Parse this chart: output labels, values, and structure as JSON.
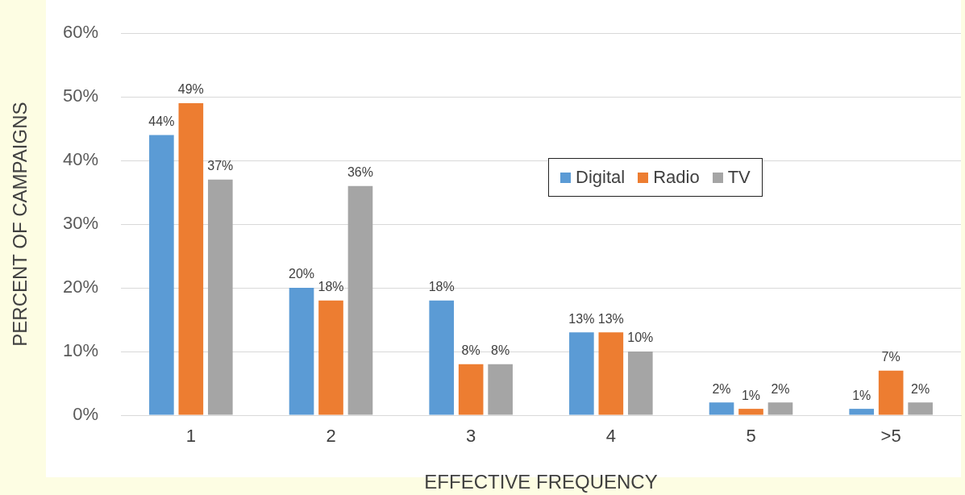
{
  "chart_data": {
    "type": "bar",
    "xlabel": "EFFECTIVE FREQUENCY",
    "ylabel": "PERCENT OF CAMPAIGNS",
    "categories": [
      "1",
      "2",
      "3",
      "4",
      "5",
      ">5"
    ],
    "series": [
      {
        "name": "Digital",
        "color": "#5b9bd5",
        "values": [
          44,
          20,
          18,
          13,
          2,
          1
        ],
        "value_labels": [
          "44%",
          "20%",
          "18%",
          "13%",
          "2%",
          "1%"
        ]
      },
      {
        "name": "Radio",
        "color": "#ed7d31",
        "values": [
          49,
          18,
          8,
          13,
          1,
          7
        ],
        "value_labels": [
          "49%",
          "18%",
          "8%",
          "13%",
          "1%",
          "7%"
        ]
      },
      {
        "name": "TV",
        "color": "#a5a5a5",
        "values": [
          37,
          36,
          8,
          10,
          2,
          2
        ],
        "value_labels": [
          "37%",
          "36%",
          "8%",
          "10%",
          "2%",
          "2%"
        ]
      }
    ],
    "ylim": [
      0,
      60
    ],
    "yticks": [
      {
        "value": 0,
        "label": "0%"
      },
      {
        "value": 10,
        "label": "10%"
      },
      {
        "value": 20,
        "label": "20%"
      },
      {
        "value": 30,
        "label": "30%"
      },
      {
        "value": 40,
        "label": "40%"
      },
      {
        "value": 50,
        "label": "50%"
      },
      {
        "value": 60,
        "label": "60%"
      }
    ],
    "grid": "y",
    "legend": "top right"
  }
}
